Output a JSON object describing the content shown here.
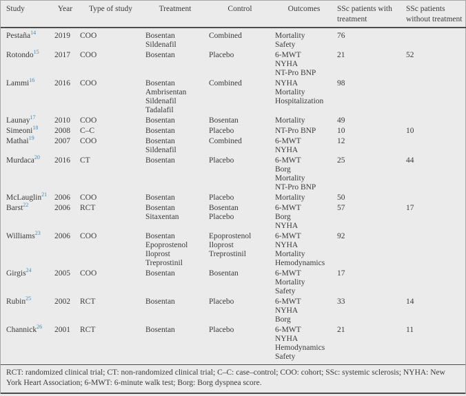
{
  "table": {
    "columns": [
      "Study",
      "Year",
      "Type of study",
      "Treatment",
      "Control",
      "Outcomes",
      "SSc patients with treatment",
      "SSc patients without treatment"
    ],
    "rows": [
      {
        "study": "Pestaña",
        "ref": "14",
        "year": "2019",
        "type": "COO",
        "treatment": [
          "Bosentan",
          "Sildenafil"
        ],
        "control": [
          "Combined"
        ],
        "outcomes": [
          "Mortality",
          "Safety"
        ],
        "with_treatment": "76",
        "without_treatment": ""
      },
      {
        "study": "Rotondo",
        "ref": "15",
        "year": "2017",
        "type": "COO",
        "treatment": [
          "Bosentan"
        ],
        "control": [
          "Placebo"
        ],
        "outcomes": [
          "6-MWT",
          "NYHA",
          "NT-Pro BNP"
        ],
        "with_treatment": "21",
        "without_treatment": "52"
      },
      {
        "study": "Lammi",
        "ref": "16",
        "year": "2016",
        "type": "COO",
        "treatment": [
          "Bosentan",
          "Ambrisentan",
          "Sildenafil",
          "Tadalafil"
        ],
        "control": [
          "Combined"
        ],
        "outcomes": [
          "NYHA",
          "Mortality",
          "Hospitalization"
        ],
        "with_treatment": "98",
        "without_treatment": ""
      },
      {
        "study": "Launay",
        "ref": "17",
        "year": "2010",
        "type": "COO",
        "treatment": [
          "Bosentan"
        ],
        "control": [
          "Bosentan"
        ],
        "outcomes": [
          "Mortality"
        ],
        "with_treatment": "49",
        "without_treatment": ""
      },
      {
        "study": "Simeoni",
        "ref": "18",
        "year": "2008",
        "type": "C–C",
        "treatment": [
          "Bosentan"
        ],
        "control": [
          "Placebo"
        ],
        "outcomes": [
          "NT-Pro BNP"
        ],
        "with_treatment": "10",
        "without_treatment": "10"
      },
      {
        "study": "Mathai",
        "ref": "19",
        "year": "2007",
        "type": "COO",
        "treatment": [
          "Bosentan",
          "Sildenafil"
        ],
        "control": [
          "Combined"
        ],
        "outcomes": [
          "6-MWT",
          "NYHA"
        ],
        "with_treatment": "12",
        "without_treatment": ""
      },
      {
        "study": "Murdaca",
        "ref": "20",
        "year": "2016",
        "type": "CT",
        "treatment": [
          "Bosentan"
        ],
        "control": [
          "Placebo"
        ],
        "outcomes": [
          "6-MWT",
          "Borg",
          "Mortality",
          "NT-Pro BNP"
        ],
        "with_treatment": "25",
        "without_treatment": "44"
      },
      {
        "study": "McLauglin",
        "ref": "21",
        "year": "2006",
        "type": "COO",
        "treatment": [
          "Bosentan"
        ],
        "control": [
          "Placebo"
        ],
        "outcomes": [
          "Mortality"
        ],
        "with_treatment": "50",
        "without_treatment": ""
      },
      {
        "study": "Barst",
        "ref": "22",
        "year": "2006",
        "type": "RCT",
        "treatment": [
          "Bosentan",
          "Sitaxentan"
        ],
        "control": [
          "Bosentan",
          "Placebo"
        ],
        "outcomes": [
          "6-MWT",
          "Borg",
          "NYHA"
        ],
        "with_treatment": "57",
        "without_treatment": "17"
      },
      {
        "study": "Williams",
        "ref": "23",
        "year": "2006",
        "type": "COO",
        "treatment": [
          "Bosentan",
          "Epoprostenol",
          "Iloprost",
          "Treprostinil"
        ],
        "control": [
          "Epoprostenol",
          "Iloprost",
          "Treprostinil"
        ],
        "outcomes": [
          "6-MWT",
          "NYHA",
          "Mortality",
          "Hemodynamics"
        ],
        "with_treatment": "92",
        "without_treatment": ""
      },
      {
        "study": "Girgis",
        "ref": "24",
        "year": "2005",
        "type": "COO",
        "treatment": [
          "Bosentan"
        ],
        "control": [
          "Bosentan"
        ],
        "outcomes": [
          "6-MWT",
          "Mortality",
          "Safety"
        ],
        "with_treatment": "17",
        "without_treatment": ""
      },
      {
        "study": "Rubin",
        "ref": "25",
        "year": "2002",
        "type": "RCT",
        "treatment": [
          "Bosentan"
        ],
        "control": [
          "Placebo"
        ],
        "outcomes": [
          "6-MWT",
          "NYHA",
          "Borg"
        ],
        "with_treatment": "33",
        "without_treatment": "14"
      },
      {
        "study": "Channick",
        "ref": "26",
        "year": "2001",
        "type": "RCT",
        "treatment": [
          "Bosentan"
        ],
        "control": [
          "Placebo"
        ],
        "outcomes": [
          "6-MWT",
          "NYHA",
          "Hemodynamics",
          "Safety"
        ],
        "with_treatment": "21",
        "without_treatment": "11"
      }
    ],
    "footnote": "RCT: randomized clinical trial; CT: non-randomized clinical trial; C–C: case–control; COO: cohort; SSc: systemic sclerosis; NYHA: New York Heart Association; 6-MWT: 6-minute walk test; Borg: Borg dyspnea score."
  },
  "colors": {
    "background": "#ebebeb",
    "text": "#3a3a3a",
    "citation_blue": "#4288b5",
    "rule": "#4b4b4b"
  }
}
